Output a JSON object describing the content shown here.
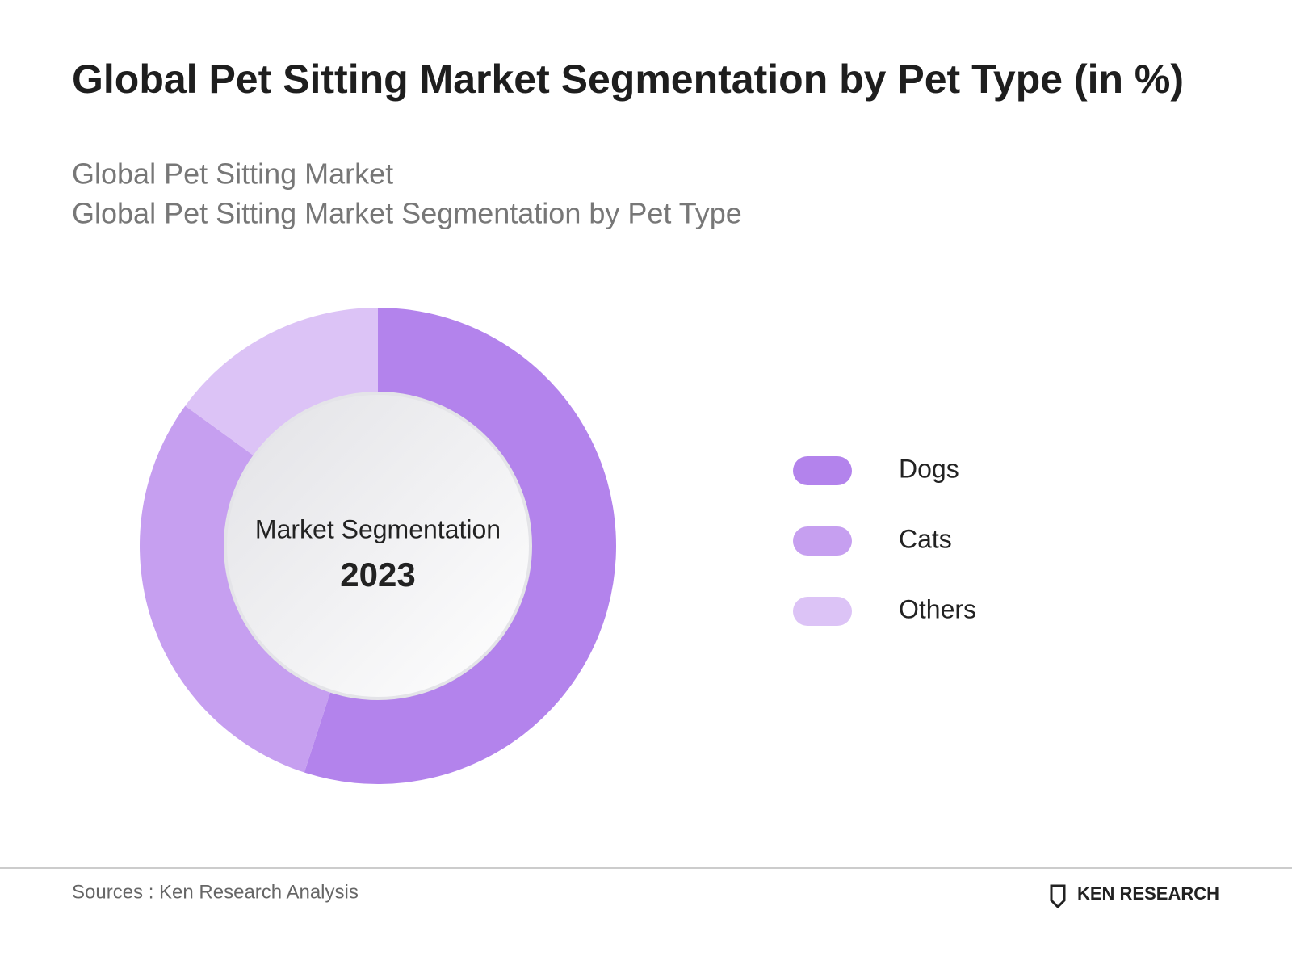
{
  "chart_data": {
    "type": "donut",
    "title": "Global Pet Sitting Market Segmentation by Pet Type (in %)",
    "subtitle": [
      "Global Pet Sitting Market",
      "Global Pet Sitting Market Segmentation by Pet Type"
    ],
    "center_label": "Market Segmentation",
    "center_year": "2023",
    "categories": [
      "Dogs",
      "Cats",
      "Others"
    ],
    "values": [
      55,
      30,
      15
    ],
    "colors": [
      "#b383ec",
      "#c69ff0",
      "#dcc3f6"
    ],
    "source": "Sources : Ken Research Analysis",
    "logo": "KEN RESEARCH"
  }
}
